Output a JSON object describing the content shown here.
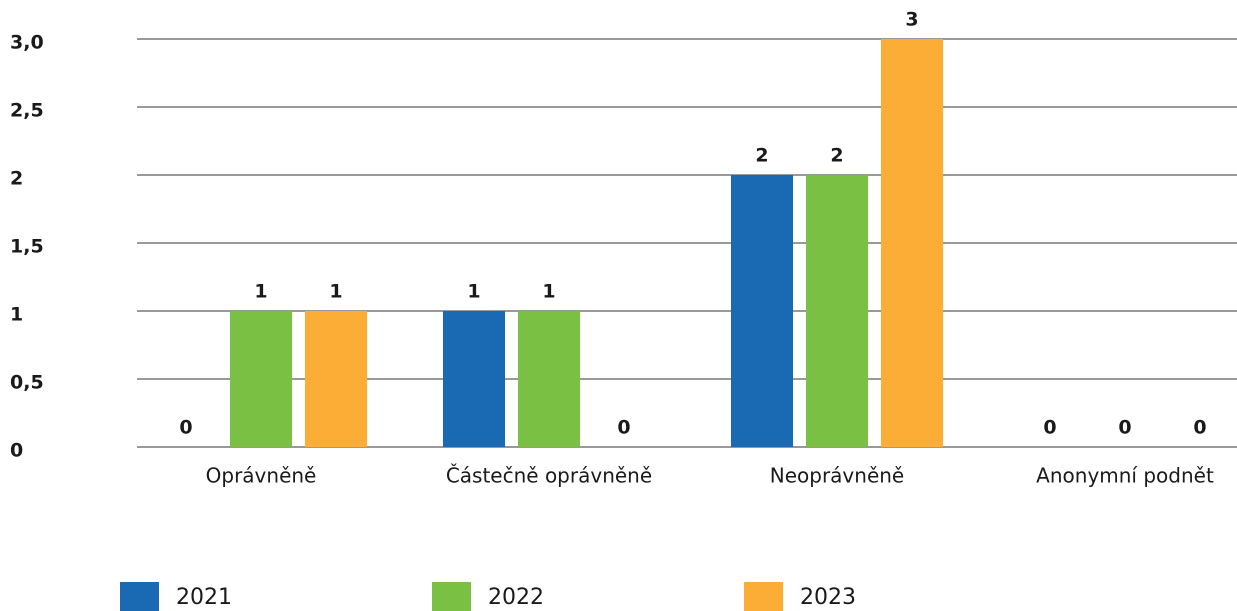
{
  "chart_data": {
    "type": "bar",
    "categories": [
      "Oprávněně",
      "Částečně oprávněně",
      "Neoprávněně",
      "Anonymní podnět"
    ],
    "series": [
      {
        "name": "2021",
        "color": "#1a69b3",
        "values": [
          0,
          1,
          2,
          0
        ]
      },
      {
        "name": "2022",
        "color": "#7ac143",
        "values": [
          1,
          1,
          2,
          0
        ]
      },
      {
        "name": "2023",
        "color": "#fbad36",
        "values": [
          1,
          0,
          3,
          0
        ]
      }
    ],
    "ylim": [
      0,
      3
    ],
    "yticks": [
      0,
      {
        "value": 0.5,
        "label": "0,5"
      },
      1,
      {
        "value": 1.5,
        "label": "1,5"
      },
      2,
      {
        "value": 2.5,
        "label": "2,5"
      },
      {
        "value": 3,
        "label": "3,0"
      }
    ],
    "grid": true
  }
}
